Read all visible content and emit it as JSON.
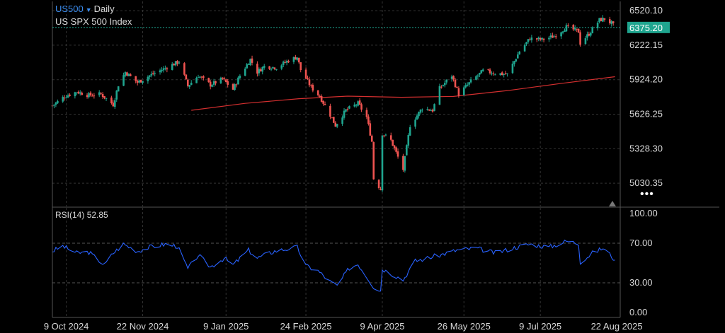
{
  "header": {
    "symbol": "US500",
    "interval": "Daily",
    "name": "US SPX 500 Index"
  },
  "indicator": {
    "label": "RSI(14)",
    "value": "52.85"
  },
  "more_icon": "ellipsis-icon",
  "colors": {
    "up": "#1fa58f",
    "down": "#ef5350",
    "ma": "#d32f2f",
    "rsi": "#2962ff",
    "accent": "#3b8df0"
  },
  "chart_data": {
    "type": "candlestick",
    "title": "US SPX 500 Index",
    "last_price": "6375.20",
    "y_ticks": [
      "6520.10",
      "6222.15",
      "5924.20",
      "5626.25",
      "5328.30",
      "5030.35"
    ],
    "ylim": [
      4830,
      6600
    ],
    "x_ticks": [
      {
        "label": "9 Oct 2024",
        "date": "2024-10-09"
      },
      {
        "label": "22 Nov 2024",
        "date": "2024-11-22"
      },
      {
        "label": "9 Jan 2025",
        "date": "2025-01-09"
      },
      {
        "label": "24 Feb 2025",
        "date": "2025-02-24"
      },
      {
        "label": "9 Apr 2025",
        "date": "2025-04-09"
      },
      {
        "label": "26 May 2025",
        "date": "2025-05-26"
      },
      {
        "label": "9 Jul 2025",
        "date": "2025-07-09"
      },
      {
        "label": "22 Aug 2025",
        "date": "2025-08-22"
      }
    ],
    "xlim": [
      "2024-10-01",
      "2025-08-24"
    ],
    "close_series": [
      [
        "2024-10-01",
        5700
      ],
      [
        "2024-10-08",
        5780
      ],
      [
        "2024-10-15",
        5820
      ],
      [
        "2024-10-22",
        5790
      ],
      [
        "2024-10-29",
        5800
      ],
      [
        "2024-11-05",
        5710
      ],
      [
        "2024-11-08",
        5880
      ],
      [
        "2024-11-12",
        5990
      ],
      [
        "2024-11-19",
        5900
      ],
      [
        "2024-11-26",
        5960
      ],
      [
        "2024-12-03",
        6010
      ],
      [
        "2024-12-10",
        6060
      ],
      [
        "2024-12-13",
        6080
      ],
      [
        "2024-12-18",
        5870
      ],
      [
        "2024-12-24",
        5960
      ],
      [
        "2024-12-31",
        5880
      ],
      [
        "2025-01-07",
        5930
      ],
      [
        "2025-01-13",
        5840
      ],
      [
        "2025-01-17",
        5960
      ],
      [
        "2025-01-23",
        6100
      ],
      [
        "2025-01-27",
        5990
      ],
      [
        "2025-01-31",
        6040
      ],
      [
        "2025-02-07",
        6030
      ],
      [
        "2025-02-14",
        6090
      ],
      [
        "2025-02-19",
        6120
      ],
      [
        "2025-02-21",
        6010
      ],
      [
        "2025-02-27",
        5860
      ],
      [
        "2025-03-04",
        5780
      ],
      [
        "2025-03-10",
        5620
      ],
      [
        "2025-03-13",
        5530
      ],
      [
        "2025-03-19",
        5660
      ],
      [
        "2025-03-26",
        5720
      ],
      [
        "2025-03-31",
        5600
      ],
      [
        "2025-04-03",
        5390
      ],
      [
        "2025-04-04",
        5070
      ],
      [
        "2025-04-08",
        4980
      ],
      [
        "2025-04-09",
        5460
      ],
      [
        "2025-04-14",
        5400
      ],
      [
        "2025-04-21",
        5150
      ],
      [
        "2025-04-25",
        5530
      ],
      [
        "2025-05-02",
        5680
      ],
      [
        "2025-05-08",
        5660
      ],
      [
        "2025-05-12",
        5850
      ],
      [
        "2025-05-19",
        5960
      ],
      [
        "2025-05-23",
        5800
      ],
      [
        "2025-05-30",
        5910
      ],
      [
        "2025-06-06",
        6000
      ],
      [
        "2025-06-13",
        5980
      ],
      [
        "2025-06-20",
        5970
      ],
      [
        "2025-06-27",
        6170
      ],
      [
        "2025-07-03",
        6280
      ],
      [
        "2025-07-10",
        6270
      ],
      [
        "2025-07-17",
        6300
      ],
      [
        "2025-07-24",
        6380
      ],
      [
        "2025-07-31",
        6340
      ],
      [
        "2025-08-01",
        6240
      ],
      [
        "2025-08-06",
        6320
      ],
      [
        "2025-08-12",
        6440
      ],
      [
        "2025-08-15",
        6450
      ],
      [
        "2025-08-19",
        6410
      ],
      [
        "2025-08-21",
        6375
      ]
    ],
    "moving_average": {
      "start": "2024-12-20",
      "points": [
        [
          "2024-12-20",
          5660
        ],
        [
          "2025-01-20",
          5720
        ],
        [
          "2025-02-20",
          5760
        ],
        [
          "2025-03-20",
          5782
        ],
        [
          "2025-04-20",
          5772
        ],
        [
          "2025-05-20",
          5780
        ],
        [
          "2025-06-20",
          5830
        ],
        [
          "2025-07-20",
          5890
        ],
        [
          "2025-08-21",
          5950
        ]
      ]
    },
    "rsi": {
      "label": "RSI(14)",
      "last": 52.85,
      "y_ticks": [
        "100.00",
        "70.00",
        "30.00",
        "0.00"
      ],
      "levels": [
        70,
        30
      ],
      "points": [
        [
          "2024-10-01",
          62
        ],
        [
          "2024-10-07",
          67
        ],
        [
          "2024-10-15",
          60
        ],
        [
          "2024-10-22",
          61
        ],
        [
          "2024-10-31",
          48
        ],
        [
          "2024-11-05",
          60
        ],
        [
          "2024-11-11",
          69
        ],
        [
          "2024-11-19",
          62
        ],
        [
          "2024-11-26",
          66
        ],
        [
          "2024-12-05",
          69
        ],
        [
          "2024-12-12",
          67
        ],
        [
          "2024-12-18",
          44
        ],
        [
          "2024-12-24",
          58
        ],
        [
          "2024-12-31",
          46
        ],
        [
          "2025-01-08",
          55
        ],
        [
          "2025-01-13",
          48
        ],
        [
          "2025-01-22",
          63
        ],
        [
          "2025-01-27",
          55
        ],
        [
          "2025-02-06",
          62
        ],
        [
          "2025-02-19",
          66
        ],
        [
          "2025-02-24",
          47
        ],
        [
          "2025-03-03",
          42
        ],
        [
          "2025-03-10",
          31
        ],
        [
          "2025-03-14",
          27
        ],
        [
          "2025-03-21",
          45
        ],
        [
          "2025-03-26",
          49
        ],
        [
          "2025-04-04",
          26
        ],
        [
          "2025-04-08",
          22
        ],
        [
          "2025-04-09",
          44
        ],
        [
          "2025-04-21",
          33
        ],
        [
          "2025-04-28",
          52
        ],
        [
          "2025-05-12",
          58
        ],
        [
          "2025-05-22",
          63
        ],
        [
          "2025-06-02",
          65
        ],
        [
          "2025-06-13",
          60
        ],
        [
          "2025-06-25",
          66
        ],
        [
          "2025-07-03",
          69
        ],
        [
          "2025-07-14",
          66
        ],
        [
          "2025-07-24",
          72
        ],
        [
          "2025-07-31",
          70
        ],
        [
          "2025-08-01",
          51
        ],
        [
          "2025-08-08",
          60
        ],
        [
          "2025-08-14",
          65
        ],
        [
          "2025-08-19",
          57
        ],
        [
          "2025-08-21",
          52.85
        ]
      ]
    },
    "grid": true,
    "legend": "top-left"
  }
}
